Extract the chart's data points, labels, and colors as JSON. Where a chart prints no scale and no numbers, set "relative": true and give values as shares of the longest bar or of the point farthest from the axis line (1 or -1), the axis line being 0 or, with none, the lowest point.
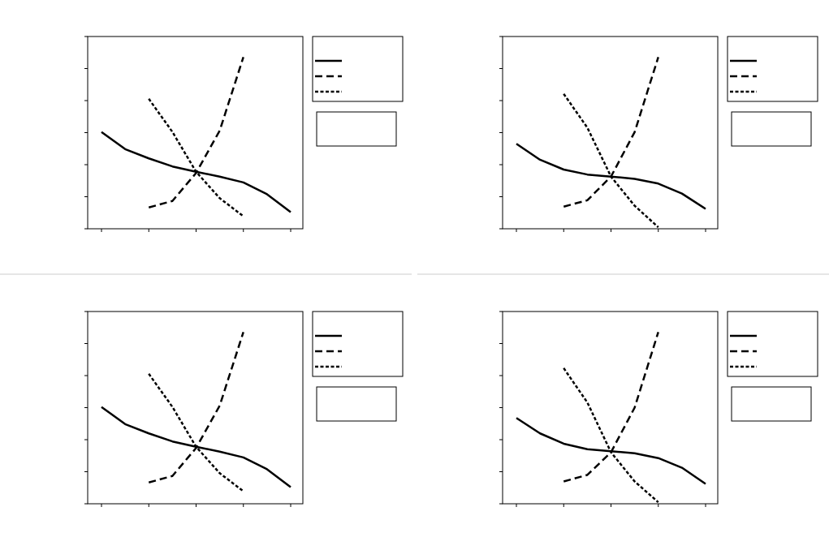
{
  "chart_data": [
    {
      "type": "line",
      "relative": true,
      "categories": [
        null,
        null,
        null,
        null,
        null,
        null,
        null,
        null,
        null
      ],
      "series": [
        {
          "color": "#000000",
          "line_style": "solid",
          "values": [
            0.564,
            0.464,
            0.41,
            0.363,
            0.332,
            0.304,
            0.27,
            0.201,
            0.097
          ]
        },
        {
          "color": "#000000",
          "line_style": "dashed",
          "values": [
            null,
            null,
            0.124,
            0.162,
            0.325,
            0.572,
            1,
            null,
            null
          ]
        },
        {
          "color": "#000000",
          "line_style": "dotted",
          "values": [
            null,
            null,
            0.757,
            0.564,
            0.332,
            0.178,
            0.073,
            null,
            null
          ]
        }
      ]
    },
    {
      "type": "line",
      "relative": true,
      "categories": [
        null,
        null,
        null,
        null,
        null,
        null,
        null,
        null,
        null
      ],
      "series": [
        {
          "color": "#000000",
          "line_style": "solid",
          "values": [
            0.495,
            0.402,
            0.345,
            0.316,
            0.304,
            0.291,
            0.263,
            0.205,
            0.116
          ]
        },
        {
          "color": "#000000",
          "line_style": "dashed",
          "values": [
            null,
            null,
            0.129,
            0.166,
            0.304,
            0.563,
            1,
            null,
            null
          ]
        },
        {
          "color": "#000000",
          "line_style": "dotted",
          "values": [
            null,
            null,
            0.786,
            0.589,
            0.304,
            0.134,
            0.009,
            null,
            null
          ]
        }
      ]
    },
    {
      "type": "line",
      "relative": true,
      "categories": [
        null,
        null,
        null,
        null,
        null,
        null,
        null,
        null,
        null
      ],
      "series": [
        {
          "color": "#000000",
          "line_style": "solid",
          "values": [
            0.564,
            0.464,
            0.41,
            0.363,
            0.332,
            0.304,
            0.27,
            0.201,
            0.097
          ]
        },
        {
          "color": "#000000",
          "line_style": "dashed",
          "values": [
            null,
            null,
            0.124,
            0.162,
            0.325,
            0.572,
            1,
            null,
            null
          ]
        },
        {
          "color": "#000000",
          "line_style": "dotted",
          "values": [
            null,
            null,
            0.757,
            0.564,
            0.332,
            0.178,
            0.073,
            null,
            null
          ]
        }
      ]
    },
    {
      "type": "line",
      "relative": true,
      "categories": [
        null,
        null,
        null,
        null,
        null,
        null,
        null,
        null,
        null
      ],
      "series": [
        {
          "color": "#000000",
          "line_style": "solid",
          "values": [
            0.5,
            0.41,
            0.35,
            0.318,
            0.306,
            0.294,
            0.266,
            0.21,
            0.116
          ]
        },
        {
          "color": "#000000",
          "line_style": "dashed",
          "values": [
            null,
            null,
            0.13,
            0.168,
            0.3,
            0.56,
            1,
            null,
            null
          ]
        },
        {
          "color": "#000000",
          "line_style": "dotted",
          "values": [
            null,
            null,
            0.79,
            0.59,
            0.3,
            0.13,
            0.009,
            null,
            null
          ]
        }
      ]
    }
  ]
}
